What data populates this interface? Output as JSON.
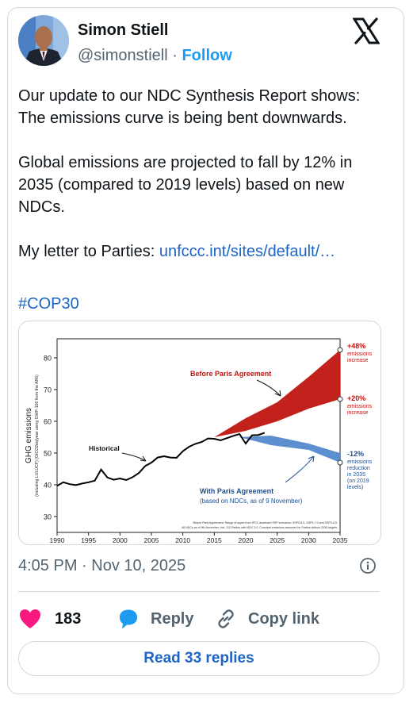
{
  "author": {
    "name": "Simon Stiell",
    "handle": "@simonstiell",
    "separator": "·",
    "follow_label": "Follow"
  },
  "tweet": {
    "para1": "Our update to our NDC Synthesis Report shows: The emissions curve is being bent downwards.",
    "para2": "Global emissions are projected to fall by 12% in 2035 (compared to 2019 levels) based on new NDCs.",
    "para3_prefix": "My letter to Parties: ",
    "link_text": "unfccc.int/sites/default/…",
    "hashtag": "#COP30"
  },
  "chart_data": {
    "type": "area",
    "title": "",
    "ylabel": "GHG emissions",
    "ylabel_sub": "(including LULUCF) (GtCO2eq/year using GWP-100 from the AR6)",
    "xlim": [
      1990,
      2035
    ],
    "ylim": [
      25,
      86
    ],
    "x_ticks": [
      "1990",
      "1995",
      "2000",
      "2005",
      "2010",
      "2015",
      "2020",
      "2025",
      "2030",
      "2035"
    ],
    "y_ticks": [
      "30",
      "40",
      "50",
      "60",
      "70",
      "80"
    ],
    "colors": {
      "historical": "#000000",
      "before_paris": "#c0150f",
      "with_paris": "#5b8fd0",
      "pct_red": "#c0150f",
      "pct_blue": "#1d4f91"
    },
    "historical": {
      "x": [
        1990,
        1991,
        1992,
        1993,
        1994,
        1995,
        1996,
        1997,
        1998,
        1999,
        2000,
        2001,
        2002,
        2003,
        2004,
        2005,
        2006,
        2007,
        2008,
        2009,
        2010,
        2011,
        2012,
        2013,
        2014,
        2015,
        2016,
        2017,
        2018,
        2019,
        2020,
        2021,
        2022,
        2023
      ],
      "y": [
        39.7,
        40.8,
        40.2,
        39.9,
        40.4,
        40.8,
        41.3,
        44.8,
        42.3,
        41.6,
        42.0,
        41.5,
        42.4,
        43.7,
        45.9,
        47.0,
        48.6,
        49.0,
        48.6,
        48.5,
        50.6,
        52.0,
        52.9,
        53.5,
        54.6,
        54.5,
        54.0,
        54.7,
        55.4,
        56.0,
        53.0,
        55.6,
        55.7,
        56.4
      ]
    },
    "before_paris": {
      "x": [
        2015,
        2020,
        2025,
        2030,
        2035
      ],
      "upper": [
        55.0,
        61.0,
        66.0,
        74.0,
        82.5
      ],
      "lower": [
        55.0,
        57.0,
        60.0,
        64.0,
        67.0
      ]
    },
    "with_paris": {
      "x": [
        2019,
        2024,
        2030,
        2035
      ],
      "upper": [
        55.0,
        55.5,
        53.0,
        50.0
      ],
      "lower": [
        55.0,
        52.5,
        51.0,
        47.0
      ]
    },
    "annotations": {
      "historical": "Historical",
      "before_paris": "Before Paris Agreement",
      "with_paris_line1": "With Paris Agreement",
      "with_paris_line2": "(based on NDCs, as of 9 November)",
      "plus48_pct": "+48%",
      "plus48_l1": "emissions",
      "plus48_l2": "increase",
      "plus20_pct": "+20%",
      "plus20_l1": "emissions",
      "plus20_l2": "increase",
      "minus12_pct": "-12%",
      "minus12_l1": "emissions",
      "minus12_l2": "reduction",
      "minus12_l3": "in 2035",
      "minus12_l4": "(on 2019",
      "minus12_l5": "levels)",
      "footnote1": "Before Paris Agreement: Range of upper from IPCC assessed SSP scenarios: SSP5-8.5, SSP3-7.0 and SSP3-8.5.",
      "footnote2": "All NDCs as of 9th November, incl. 112 Parties with NDC 3.0. Constant emissions assumed for Parties without 2035 targets."
    }
  },
  "meta": {
    "timestamp": "4:05 PM · Nov 10, 2025"
  },
  "actions": {
    "likes": "183",
    "reply_label": "Reply",
    "copy_link_label": "Copy link",
    "read_replies_label": "Read 33 replies"
  }
}
